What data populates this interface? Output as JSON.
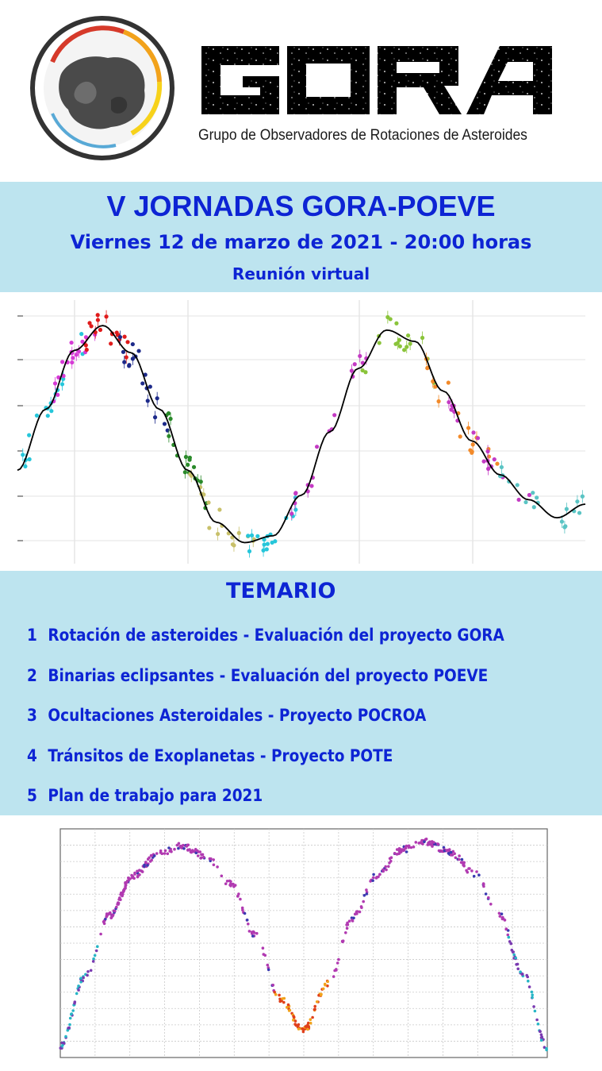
{
  "header": {
    "logo_name": "GORA",
    "subtitle": "Grupo de Observadores de Rotaciones de Asteroides"
  },
  "event": {
    "title": "V JORNADAS GORA-POEVE",
    "date": "Viernes 12 de marzo de 2021 - 20:00 horas",
    "mode": "Reunión virtual"
  },
  "agenda": {
    "title": "TEMARIO",
    "items": [
      {
        "num": "1",
        "label": "Rotación de asteroides - Evaluación del proyecto GORA"
      },
      {
        "num": "2",
        "label": "Binarias eclipsantes - Evaluación del proyecto POEVE"
      },
      {
        "num": "3",
        "label": "Ocultaciones Asteroidales - Proyecto POCROA"
      },
      {
        "num": "4",
        "label": "Tránsitos de Exoplanetas - Proyecto POTE"
      },
      {
        "num": "5",
        "label": "Plan de trabajo para 2021"
      }
    ]
  },
  "colors": {
    "accent_blue": "#0d24d4",
    "box_background": "#bde4ef"
  },
  "chart_data": [
    {
      "type": "scatter",
      "description_kind": "asteroid lightcurve",
      "x": [
        0.0,
        0.05,
        0.1,
        0.15,
        0.2,
        0.25,
        0.3,
        0.35,
        0.4,
        0.45,
        0.5,
        0.55,
        0.6,
        0.65,
        0.7,
        0.75,
        0.8,
        0.85,
        0.9,
        0.95,
        1.0
      ],
      "y": [
        0.35,
        0.62,
        0.88,
        0.99,
        0.87,
        0.62,
        0.35,
        0.12,
        0.03,
        0.06,
        0.24,
        0.52,
        0.8,
        0.97,
        0.92,
        0.7,
        0.48,
        0.33,
        0.22,
        0.14,
        0.2
      ],
      "fit_curve": true,
      "grid": true,
      "xlim": [
        0,
        1
      ],
      "ylim": [
        0,
        1.05
      ]
    },
    {
      "type": "scatter",
      "description_kind": "eclipsing binary lightcurve",
      "x": [
        0.0,
        0.05,
        0.1,
        0.15,
        0.2,
        0.25,
        0.3,
        0.35,
        0.4,
        0.45,
        0.5,
        0.55,
        0.6,
        0.65,
        0.7,
        0.75,
        0.8,
        0.85,
        0.9,
        0.95,
        1.0
      ],
      "y": [
        0.05,
        0.38,
        0.67,
        0.86,
        0.96,
        1.0,
        0.95,
        0.82,
        0.58,
        0.28,
        0.13,
        0.35,
        0.66,
        0.86,
        0.98,
        1.02,
        0.97,
        0.87,
        0.68,
        0.4,
        0.05
      ],
      "grid": true,
      "xlim": [
        0,
        1
      ],
      "ylim": [
        0,
        1.08
      ]
    }
  ]
}
